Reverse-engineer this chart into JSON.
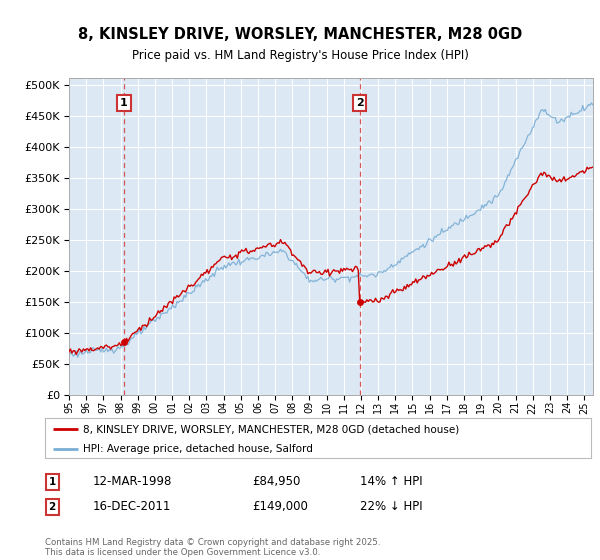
{
  "title": "8, KINSLEY DRIVE, WORSLEY, MANCHESTER, M28 0GD",
  "subtitle": "Price paid vs. HM Land Registry's House Price Index (HPI)",
  "legend_label_red": "8, KINSLEY DRIVE, WORSLEY, MANCHESTER, M28 0GD (detached house)",
  "legend_label_blue": "HPI: Average price, detached house, Salford",
  "annotation1_date": "12-MAR-1998",
  "annotation1_price": "£84,950",
  "annotation1_hpi": "14% ↑ HPI",
  "annotation2_date": "16-DEC-2011",
  "annotation2_price": "£149,000",
  "annotation2_hpi": "22% ↓ HPI",
  "footer": "Contains HM Land Registry data © Crown copyright and database right 2025.\nThis data is licensed under the Open Government Licence v3.0.",
  "plot_bg_color": "#dce8f4",
  "red_color": "#cc0000",
  "blue_color": "#7aaed4",
  "dashed_color": "#cc3333",
  "ylim": [
    0,
    510000
  ],
  "yticks": [
    0,
    50000,
    100000,
    150000,
    200000,
    250000,
    300000,
    350000,
    400000,
    450000,
    500000
  ],
  "sale1_year": 1998.2,
  "sale1_price": 84950,
  "sale2_year": 2011.92,
  "sale2_price": 149000,
  "x_start_year": 1995,
  "x_end_year": 2025.5
}
